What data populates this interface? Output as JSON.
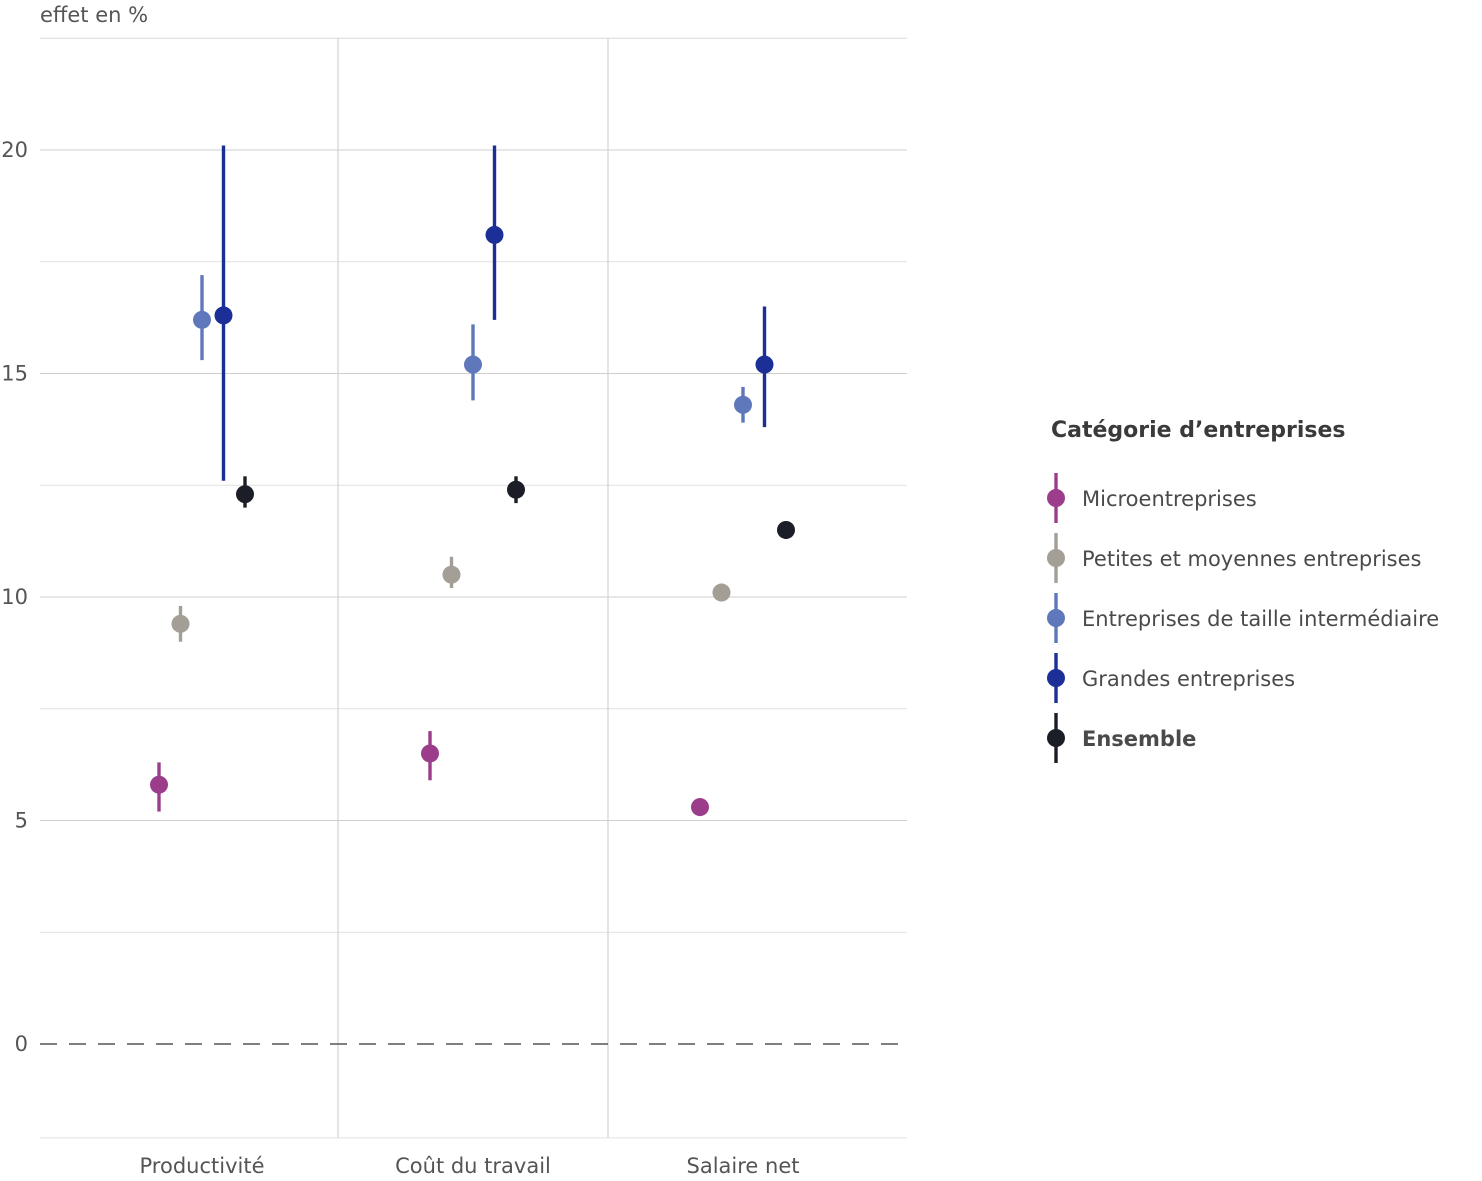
{
  "chart_data": {
    "type": "scatter",
    "subtype": "pointrange",
    "ylabel": "effet en %",
    "ylim": [
      -2.1,
      22.5
    ],
    "yticks": [
      0,
      5,
      10,
      15,
      20
    ],
    "reference_line": {
      "y": 0,
      "style": "dashed"
    },
    "grid": true,
    "categories": [
      "Productivité",
      "Coût du travail",
      "Salaire net"
    ],
    "legend": {
      "title": "Catégorie d’entreprises",
      "position": "right"
    },
    "series": [
      {
        "name": "Microentreprises",
        "color": "#9b3d8b",
        "bold": false,
        "values": [
          5.8,
          6.5,
          5.3
        ],
        "lower": [
          5.2,
          5.9,
          5.1
        ],
        "upper": [
          6.3,
          7.0,
          5.5
        ]
      },
      {
        "name": "Petites et moyennes entreprises",
        "color": "#a39e96",
        "bold": false,
        "values": [
          9.4,
          10.5,
          10.1
        ],
        "lower": [
          9.0,
          10.2,
          9.9
        ],
        "upper": [
          9.8,
          10.9,
          10.3
        ]
      },
      {
        "name": "Entreprises de taille intermédiaire",
        "color": "#5e78bb",
        "bold": false,
        "values": [
          16.2,
          15.2,
          14.3
        ],
        "lower": [
          15.3,
          14.4,
          13.9
        ],
        "upper": [
          17.2,
          16.1,
          14.7
        ]
      },
      {
        "name": "Grandes entreprises",
        "color": "#1c2f96",
        "bold": false,
        "values": [
          16.3,
          18.1,
          15.2
        ],
        "lower": [
          12.6,
          16.2,
          13.8
        ],
        "upper": [
          20.1,
          20.1,
          16.5
        ]
      },
      {
        "name": "Ensemble",
        "color": "#1b1e26",
        "bold": true,
        "values": [
          12.3,
          12.4,
          11.5
        ],
        "lower": [
          12.0,
          12.1,
          11.3
        ],
        "upper": [
          12.7,
          12.7,
          11.6
        ]
      }
    ]
  }
}
